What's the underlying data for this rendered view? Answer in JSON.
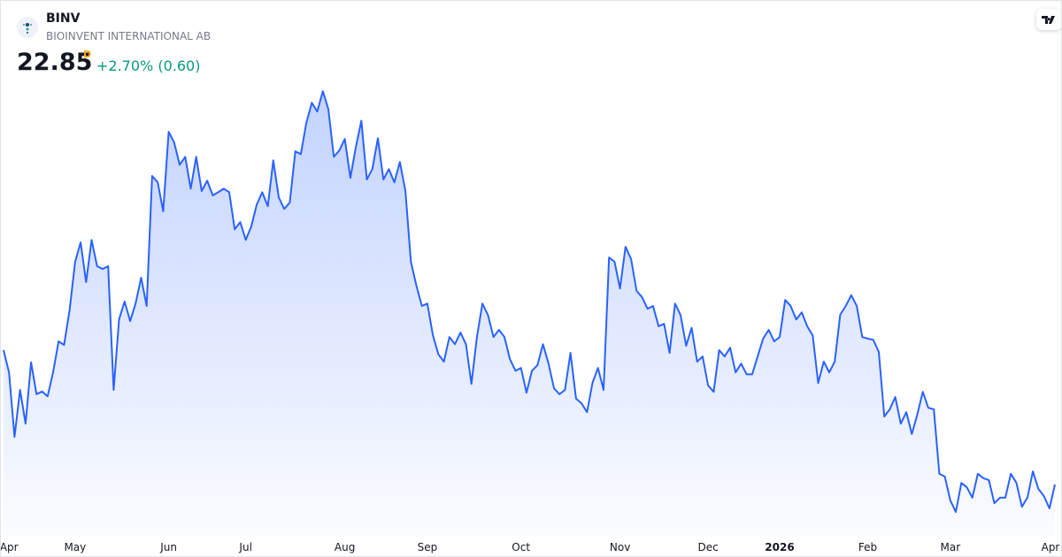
{
  "header": {
    "symbol": "BINV",
    "name": "BIOINVENT INTERNATIONAL AB",
    "price": "22.85",
    "interval": "D",
    "change": "+2.70% (0.60)"
  },
  "chart_data": {
    "type": "area",
    "color": "#2962ff",
    "ylim": [
      21.55,
      33.5
    ],
    "values": [
      26.23,
      25.67,
      24.05,
      25.23,
      24.38,
      25.92,
      25.12,
      25.19,
      25.07,
      25.67,
      26.45,
      26.36,
      27.23,
      28.45,
      28.94,
      27.94,
      29.0,
      28.34,
      28.27,
      28.34,
      25.23,
      27.01,
      27.45,
      26.96,
      27.41,
      28.05,
      27.34,
      30.61,
      30.45,
      29.72,
      31.72,
      31.45,
      30.89,
      31.09,
      30.29,
      31.09,
      30.23,
      30.49,
      30.12,
      30.2,
      30.29,
      30.2,
      29.27,
      29.45,
      29.0,
      29.34,
      29.89,
      30.2,
      29.85,
      31.0,
      30.07,
      29.78,
      29.94,
      31.23,
      31.16,
      31.94,
      32.45,
      32.23,
      32.74,
      32.29,
      31.09,
      31.25,
      31.54,
      30.56,
      31.34,
      32.0,
      30.52,
      30.78,
      31.56,
      30.52,
      30.78,
      30.45,
      30.96,
      30.23,
      28.45,
      27.85,
      27.34,
      27.4,
      26.6,
      26.12,
      25.94,
      26.56,
      26.38,
      26.67,
      26.38,
      25.38,
      26.56,
      27.4,
      27.11,
      26.56,
      26.74,
      26.56,
      26.0,
      25.71,
      25.78,
      25.16,
      25.71,
      25.85,
      26.38,
      25.89,
      25.27,
      25.12,
      25.23,
      26.16,
      25.01,
      24.89,
      24.67,
      25.41,
      25.78,
      25.23,
      28.56,
      28.45,
      27.78,
      28.83,
      28.52,
      27.72,
      27.56,
      27.27,
      27.34,
      26.83,
      26.89,
      26.16,
      27.4,
      27.11,
      26.34,
      26.79,
      25.94,
      26.07,
      25.34,
      25.18,
      26.23,
      26.07,
      26.29,
      25.67,
      25.89,
      25.62,
      25.62,
      26.07,
      26.52,
      26.74,
      26.45,
      26.56,
      27.49,
      27.34,
      27.0,
      27.18,
      26.83,
      26.6,
      25.4,
      25.94,
      25.67,
      25.94,
      27.12,
      27.34,
      27.61,
      27.34,
      26.56,
      26.52,
      26.49,
      26.18,
      24.56,
      24.74,
      25.05,
      24.38,
      24.67,
      24.12,
      24.61,
      25.18,
      24.78,
      24.74,
      23.12,
      23.05,
      22.45,
      22.16,
      22.89,
      22.78,
      22.52,
      23.12,
      23.01,
      22.96,
      22.38,
      22.52,
      22.52,
      23.12,
      22.89,
      22.29,
      22.52,
      23.18,
      22.74,
      22.56,
      22.25,
      22.85
    ],
    "xticks": [
      {
        "value": 1,
        "label": "Apr"
      },
      {
        "value": 13,
        "label": "May"
      },
      {
        "value": 30,
        "label": "Jun"
      },
      {
        "value": 44,
        "label": "Jul"
      },
      {
        "value": 62,
        "label": "Aug"
      },
      {
        "value": 77,
        "label": "Sep"
      },
      {
        "value": 94,
        "label": "Oct"
      },
      {
        "value": 112,
        "label": "Nov"
      },
      {
        "value": 128,
        "label": "Dec"
      },
      {
        "value": 141,
        "label": "2026",
        "bold": true
      },
      {
        "value": 157,
        "label": "Feb"
      },
      {
        "value": 172,
        "label": "Mar"
      },
      {
        "value": 191,
        "label": "Apr"
      }
    ]
  }
}
